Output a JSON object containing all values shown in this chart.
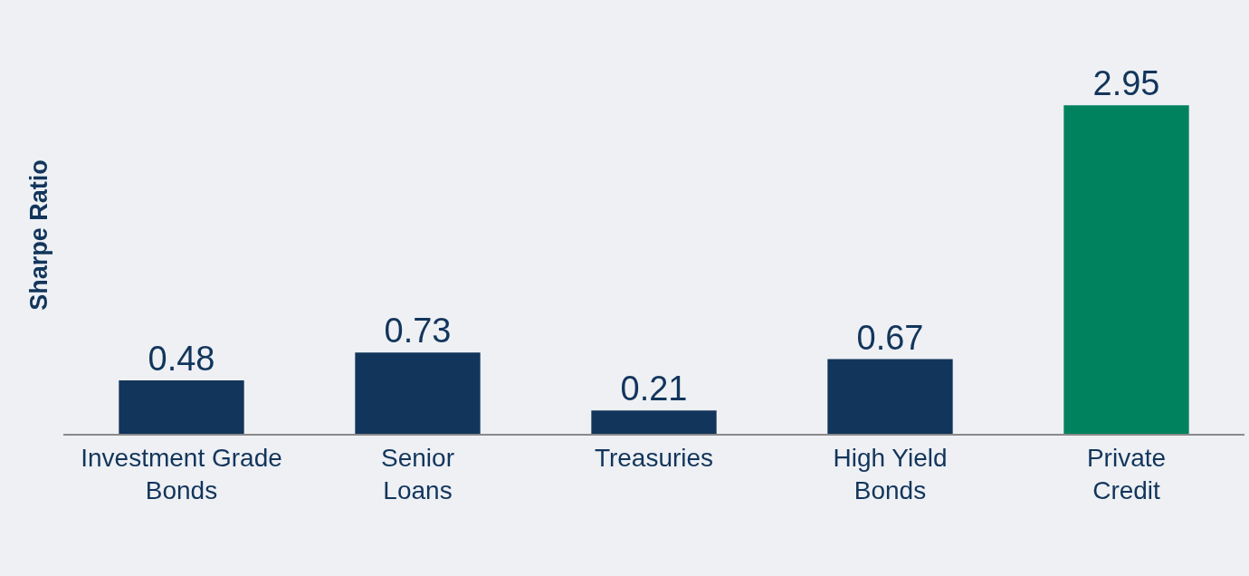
{
  "chart_data": {
    "type": "bar",
    "ylabel": "Sharpe Ratio",
    "categories": [
      "Investment Grade Bonds",
      "Senior Loans",
      "Treasuries",
      "High Yield Bonds",
      "Private Credit"
    ],
    "values": [
      0.48,
      0.73,
      0.21,
      0.67,
      2.95
    ],
    "colors": [
      "#12355b",
      "#12355b",
      "#12355b",
      "#12355b",
      "#00825f"
    ],
    "data_labels": true,
    "grid": false,
    "tick_labels": "x"
  }
}
